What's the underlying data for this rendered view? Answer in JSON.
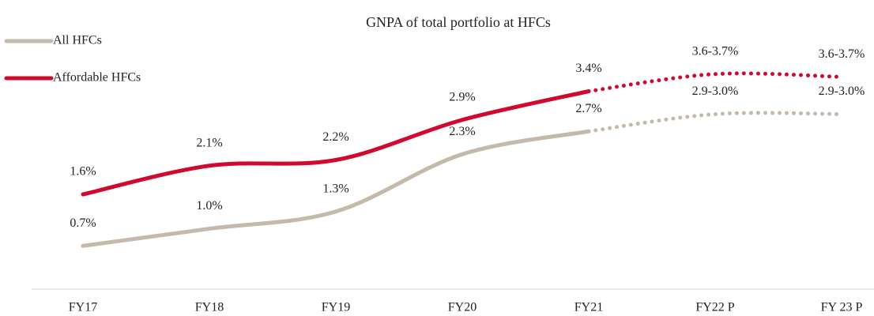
{
  "chart_data": {
    "type": "line",
    "title": "GNPA of total portfolio at HFCs",
    "categories": [
      "FY17",
      "FY18",
      "FY19",
      "FY20",
      "FY21",
      "FY22 P",
      "FY 23 P"
    ],
    "series": [
      {
        "name": "All HFCs",
        "color": "#c4b9ab",
        "values": [
          0.7,
          1.0,
          1.3,
          2.3,
          2.7,
          3.0,
          3.0
        ],
        "value_labels": [
          "0.7%",
          "1.0%",
          "1.3%",
          "2.3%",
          "2.7%",
          "2.9-3.0%",
          "2.9-3.0%"
        ]
      },
      {
        "name": "Affordable HFCs",
        "color": "#d2092f",
        "values": [
          1.6,
          2.1,
          2.2,
          2.9,
          3.4,
          3.7,
          3.65
        ],
        "value_labels": [
          "1.6%",
          "2.1%",
          "2.2%",
          "2.9%",
          "3.4%",
          "3.6-3.7%",
          "3.6-3.7%"
        ]
      }
    ],
    "ylim": [
      0,
      4.5
    ],
    "projection_start": 4,
    "legend": "top-left"
  }
}
